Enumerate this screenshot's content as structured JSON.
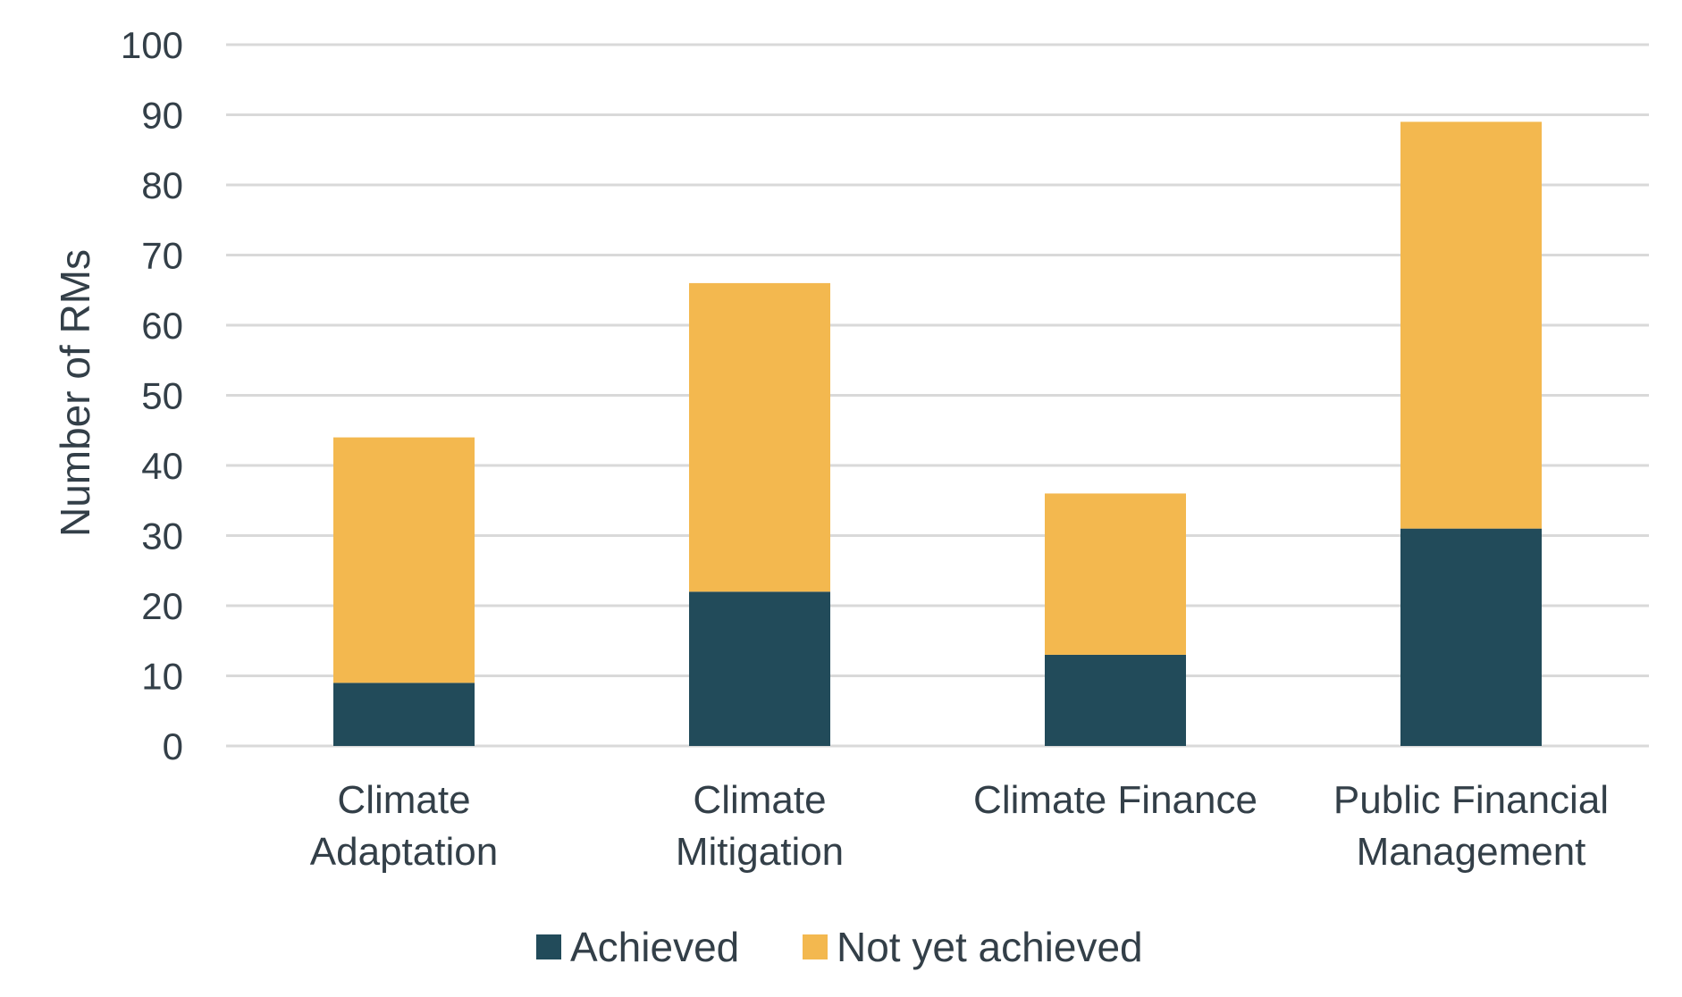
{
  "chart_data": {
    "type": "bar",
    "stacked": true,
    "categories": [
      [
        "Climate",
        "Adaptation"
      ],
      [
        "Climate",
        "Mitigation"
      ],
      [
        "Climate Finance"
      ],
      [
        "Public Financial",
        "Management"
      ]
    ],
    "series": [
      {
        "name": "Achieved",
        "color": "#224b5a",
        "values": [
          9,
          22,
          13,
          31
        ]
      },
      {
        "name": "Not yet achieved",
        "color": "#f3b84f",
        "values": [
          35,
          44,
          23,
          58
        ]
      }
    ],
    "title": "",
    "xlabel": "",
    "ylabel": "Number of RMs",
    "ylim": [
      0,
      100
    ],
    "yticks": [
      0,
      10,
      20,
      30,
      40,
      50,
      60,
      70,
      80,
      90,
      100
    ],
    "grid": true,
    "legend": "bottom"
  }
}
